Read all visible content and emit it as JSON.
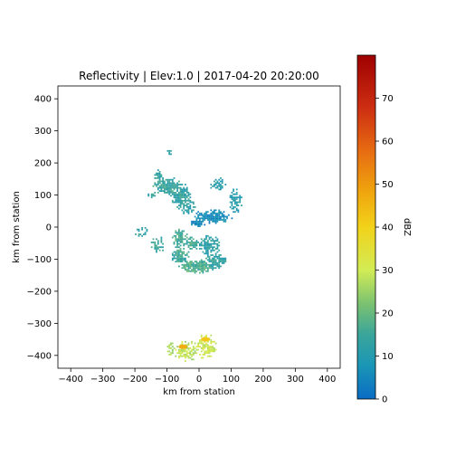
{
  "chart_data": {
    "type": "heatmap",
    "title": "Reflectivity | Elev:1.0 | 2017-04-20 20:20:00",
    "xlabel": "km from station",
    "ylabel": "km from station",
    "xlim": [
      -440,
      440
    ],
    "ylim": [
      -440,
      440
    ],
    "x_ticks": [
      -400,
      -300,
      -200,
      -100,
      0,
      100,
      200,
      300,
      400
    ],
    "y_ticks": [
      400,
      300,
      200,
      100,
      0,
      -100,
      -200,
      -300,
      -400
    ],
    "grid": false,
    "colorbar": {
      "label": "dBZ",
      "range": [
        0,
        80
      ],
      "ticks": [
        0,
        10,
        20,
        30,
        40,
        50,
        60,
        70
      ],
      "stops": [
        {
          "value": 0,
          "color": "#0a6cc4"
        },
        {
          "value": 8,
          "color": "#1b97b6"
        },
        {
          "value": 15,
          "color": "#3aa59a"
        },
        {
          "value": 22,
          "color": "#79c171"
        },
        {
          "value": 30,
          "color": "#d2ec55"
        },
        {
          "value": 40,
          "color": "#f2d21a"
        },
        {
          "value": 48,
          "color": "#f0a60e"
        },
        {
          "value": 58,
          "color": "#e66a12"
        },
        {
          "value": 68,
          "color": "#cc2d12"
        },
        {
          "value": 80,
          "color": "#9e0000"
        }
      ]
    },
    "echo_regions": [
      {
        "name": "northwest band",
        "x_center": -75,
        "y_center": 115,
        "dbz": 14
      },
      {
        "name": "arc east of station",
        "x_center": 20,
        "y_center": 20,
        "dbz": 6
      },
      {
        "name": "central band",
        "x_center": -20,
        "y_center": -60,
        "dbz": 14
      },
      {
        "name": "southern mass",
        "x_center": -10,
        "y_center": -120,
        "dbz": 16
      },
      {
        "name": "far-south cells",
        "x_center": -20,
        "y_center": -385,
        "dbz": 30
      },
      {
        "name": "strong cell",
        "x_center": -50,
        "y_center": -373,
        "dbz": 47
      },
      {
        "name": "strong cell",
        "x_center": 20,
        "y_center": -350,
        "dbz": 42
      }
    ]
  }
}
